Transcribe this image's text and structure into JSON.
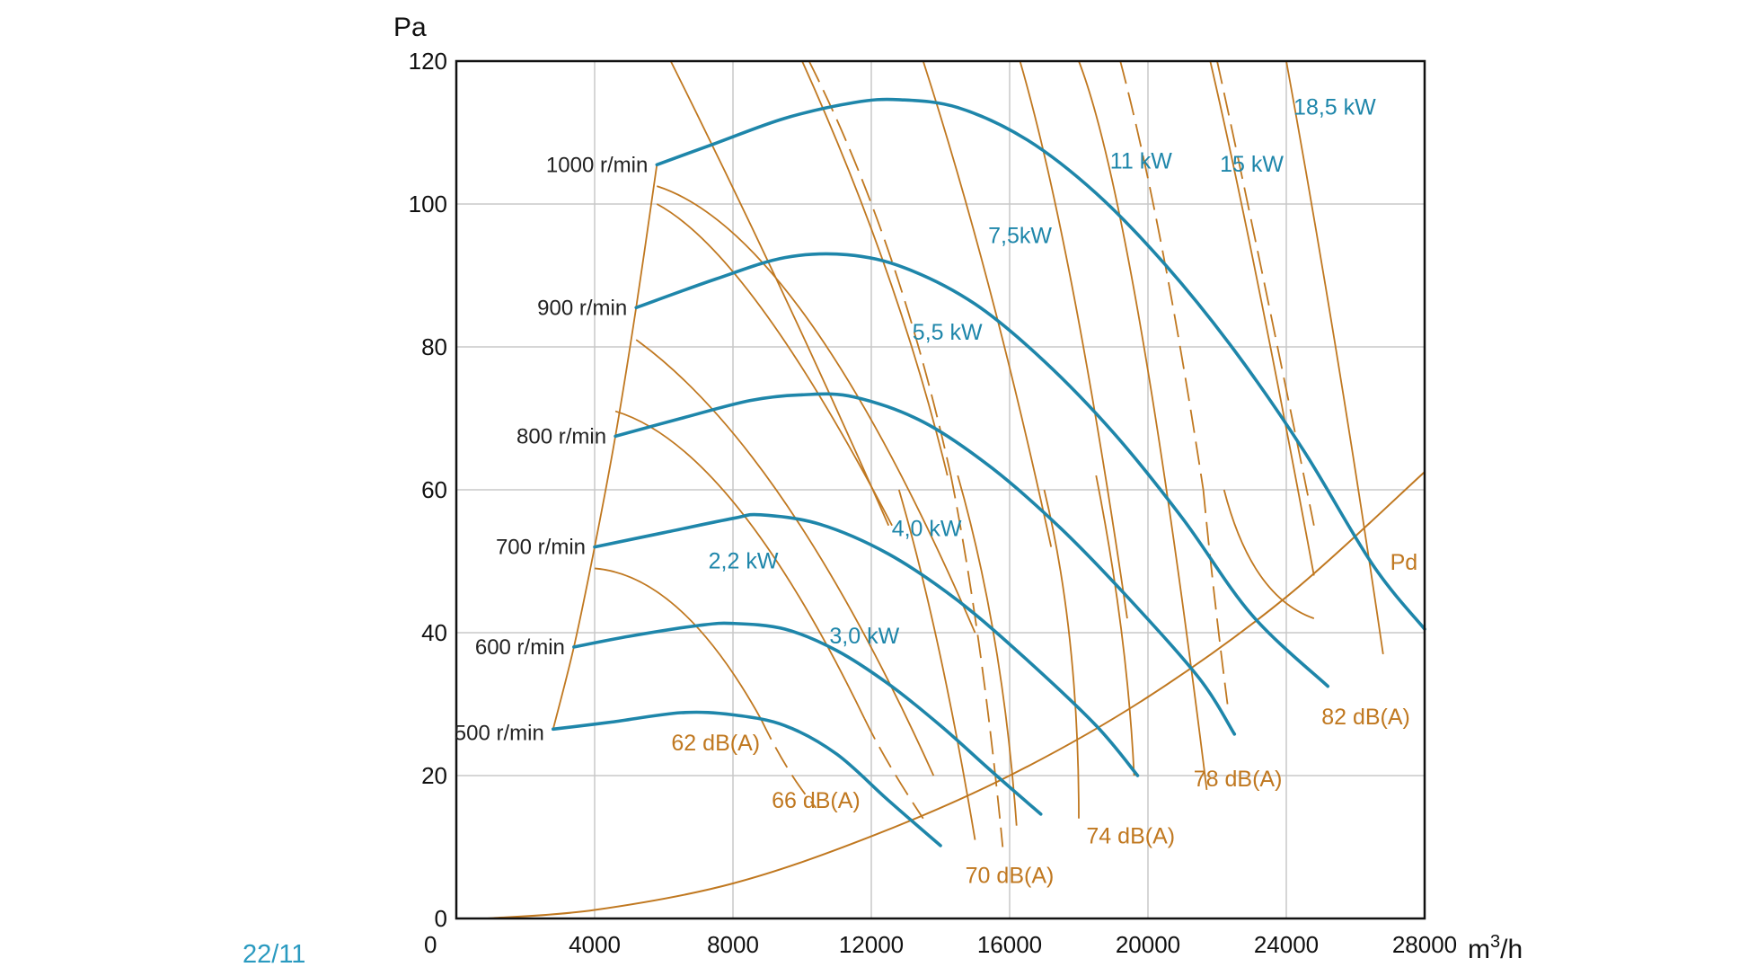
{
  "chart_data": {
    "type": "line",
    "x_unit": "m",
    "x_unit_sup": "3",
    "x_unit_tail": "/h",
    "y_unit": "Pa",
    "xlim": [
      0,
      28000
    ],
    "ylim": [
      0,
      120
    ],
    "x_ticks": [
      0,
      4000,
      8000,
      12000,
      16000,
      20000,
      24000,
      28000
    ],
    "y_ticks": [
      0,
      20,
      40,
      60,
      80,
      100,
      120
    ],
    "x_tick_labels": [
      "0",
      "4000",
      "8000",
      "12000",
      "16000",
      "20000",
      "24000",
      "28000"
    ],
    "y_tick_labels": [
      "0",
      "20",
      "40",
      "60",
      "80",
      "100",
      "120"
    ],
    "grid": true,
    "colors": {
      "fan_curve": "#1e86aa",
      "sound_and_pressure": "#c07820",
      "axis": "#111111",
      "grid": "#c8c8c8"
    },
    "series": [
      {
        "name": "500 r/min",
        "points": [
          [
            2800,
            26.5
          ],
          [
            4500,
            27.5
          ],
          [
            6500,
            28.8
          ],
          [
            8000,
            28.5
          ],
          [
            9500,
            27.0
          ],
          [
            11000,
            23.0
          ],
          [
            12500,
            16.5
          ],
          [
            14000,
            10.2
          ]
        ]
      },
      {
        "name": "600 r/min",
        "points": [
          [
            3400,
            38.0
          ],
          [
            5000,
            39.5
          ],
          [
            7000,
            41.0
          ],
          [
            8000,
            41.3
          ],
          [
            9500,
            40.5
          ],
          [
            11000,
            37.5
          ],
          [
            12500,
            32.8
          ],
          [
            14000,
            27.0
          ],
          [
            15500,
            20.5
          ],
          [
            16900,
            14.6
          ]
        ]
      },
      {
        "name": "700 r/min",
        "points": [
          [
            4000,
            52.0
          ],
          [
            6000,
            54.0
          ],
          [
            8000,
            56.0
          ],
          [
            8800,
            56.5
          ],
          [
            10500,
            55.2
          ],
          [
            12500,
            51.0
          ],
          [
            14500,
            44.5
          ],
          [
            16500,
            36.2
          ],
          [
            18500,
            27.0
          ],
          [
            19700,
            20.0
          ]
        ]
      },
      {
        "name": "800 r/min",
        "points": [
          [
            4600,
            67.5
          ],
          [
            6500,
            70.0
          ],
          [
            8500,
            72.5
          ],
          [
            10000,
            73.3
          ],
          [
            11500,
            73.0
          ],
          [
            13500,
            69.5
          ],
          [
            15500,
            63.0
          ],
          [
            17500,
            54.5
          ],
          [
            19500,
            44.5
          ],
          [
            21500,
            33.5
          ],
          [
            22500,
            25.8
          ]
        ]
      },
      {
        "name": "900 r/min",
        "points": [
          [
            5200,
            85.5
          ],
          [
            7500,
            89.5
          ],
          [
            9500,
            92.5
          ],
          [
            11300,
            92.9
          ],
          [
            13000,
            91.0
          ],
          [
            15000,
            86.0
          ],
          [
            17000,
            78.0
          ],
          [
            19000,
            68.0
          ],
          [
            21000,
            56.0
          ],
          [
            23000,
            42.5
          ],
          [
            25200,
            32.5
          ]
        ]
      },
      {
        "name": "1000 r/min",
        "points": [
          [
            5800,
            105.5
          ],
          [
            7500,
            108.5
          ],
          [
            9500,
            112.0
          ],
          [
            11500,
            114.2
          ],
          [
            12800,
            114.6
          ],
          [
            14500,
            113.5
          ],
          [
            16500,
            109.0
          ],
          [
            18500,
            101.5
          ],
          [
            20500,
            91.5
          ],
          [
            22500,
            79.5
          ],
          [
            24500,
            65.5
          ],
          [
            26500,
            49.5
          ],
          [
            28000,
            40.5
          ]
        ]
      }
    ],
    "power_labels": [
      "2,2 kW",
      "3,0 kW",
      "4,0 kW",
      "5,5 kW",
      "7,5kW",
      "11 kW",
      "15 kW",
      "18,5 kW"
    ],
    "sound_labels": [
      "62 dB(A)",
      "66 dB(A)",
      "70 dB(A)",
      "74 dB(A)",
      "78 dB(A)",
      "82 dB(A)"
    ],
    "dynamic_pressure_label": "Pd",
    "dynamic_pressure_points": [
      [
        900,
        0
      ],
      [
        4000,
        1.2
      ],
      [
        8000,
        4.9
      ],
      [
        12000,
        11.5
      ],
      [
        16000,
        20.0
      ],
      [
        20000,
        31.0
      ],
      [
        24000,
        45.0
      ],
      [
        28000,
        62.5
      ]
    ],
    "rpm_boundary_points": [
      [
        2800,
        26.5
      ],
      [
        3400,
        38.0
      ],
      [
        4000,
        52.0
      ],
      [
        4600,
        67.5
      ],
      [
        5200,
        85.5
      ],
      [
        5800,
        105.5
      ]
    ]
  },
  "figure_code": "22/11"
}
